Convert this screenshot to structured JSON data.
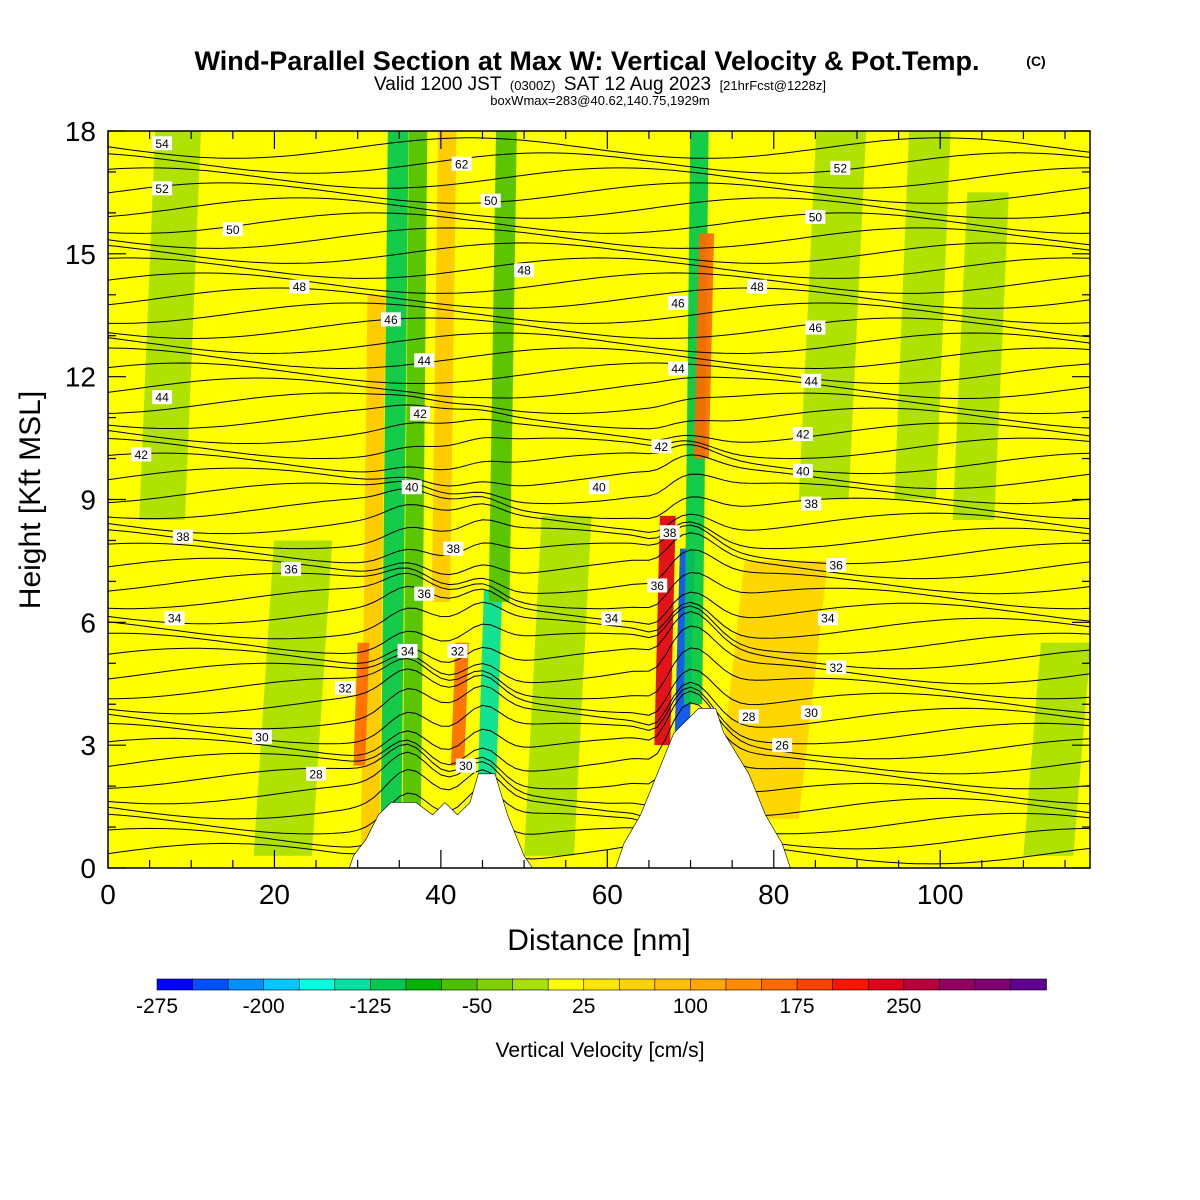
{
  "title": {
    "main": "Wind-Parallel Section at Max W: Vertical Velocity & Pot.Temp.",
    "copyright": "(C)",
    "valid_prefix": "Valid 1200 JST",
    "valid_utc": "(0300Z)",
    "valid_date": "SAT 12 Aug 2023",
    "forecast": "[21hrFcst@1228z]",
    "boxmax": "boxWmax=283@40.62,140.75,1929m"
  },
  "chart_data": {
    "type": "heatmap",
    "xlabel": "Distance [nm]",
    "ylabel": "Height [Kft MSL]",
    "xlim": [
      0,
      118
    ],
    "ylim": [
      0,
      18
    ],
    "x_ticks": [
      "0",
      "20",
      "40",
      "60",
      "80",
      "100"
    ],
    "x_tick_values": [
      0,
      20,
      40,
      60,
      80,
      100
    ],
    "y_ticks": [
      "0",
      "3",
      "6",
      "9",
      "12",
      "15",
      "18"
    ],
    "y_tick_values": [
      0,
      3,
      6,
      9,
      12,
      15,
      18
    ],
    "background_color": "#ffff00",
    "velocity_bands": [
      {
        "x": 6.5,
        "w": 5.5,
        "y0": 8.5,
        "y1": 18,
        "value": -25,
        "color": "#a8e000"
      },
      {
        "x": 21,
        "w": 7,
        "y0": 0.3,
        "y1": 8,
        "value": -25,
        "color": "#a8e000"
      },
      {
        "x": 31.5,
        "w": 2.2,
        "y0": 0.5,
        "y1": 14,
        "value": 75,
        "color": "#ffc800"
      },
      {
        "x": 30.2,
        "w": 1.4,
        "y0": 2.5,
        "y1": 5.5,
        "value": 150,
        "color": "#ff6a00"
      },
      {
        "x": 34,
        "w": 2.5,
        "y0": 0.8,
        "y1": 18,
        "value": -75,
        "color": "#00c850"
      },
      {
        "x": 36.5,
        "w": 2.2,
        "y0": 1.2,
        "y1": 18,
        "value": -50,
        "color": "#4cc000"
      },
      {
        "x": 40,
        "w": 2.2,
        "y0": 6.5,
        "y1": 18,
        "value": 75,
        "color": "#ffc800"
      },
      {
        "x": 42,
        "w": 1.6,
        "y0": 2.5,
        "y1": 5.5,
        "value": 175,
        "color": "#ff6a00"
      },
      {
        "x": 45.5,
        "w": 2.2,
        "y0": 1.8,
        "y1": 6.8,
        "value": -125,
        "color": "#00e0a0"
      },
      {
        "x": 47,
        "w": 2.5,
        "y0": 6.5,
        "y1": 18,
        "value": -50,
        "color": "#4cc000"
      },
      {
        "x": 53,
        "w": 6,
        "y0": 0.3,
        "y1": 8.6,
        "value": -25,
        "color": "#a8e000"
      },
      {
        "x": 66.6,
        "w": 1.9,
        "y0": 3,
        "y1": 8.6,
        "value": 200,
        "color": "#e0001c"
      },
      {
        "x": 69,
        "w": 1.8,
        "y0": 3.3,
        "y1": 7.8,
        "value": -250,
        "color": "#0050ff"
      },
      {
        "x": 70.3,
        "w": 2.2,
        "y0": 4,
        "y1": 18,
        "value": -100,
        "color": "#00c850"
      },
      {
        "x": 71.3,
        "w": 1.8,
        "y0": 10,
        "y1": 15.5,
        "value": 175,
        "color": "#ff6a00"
      },
      {
        "x": 78,
        "w": 10,
        "y0": 1.2,
        "y1": 7.5,
        "value": 50,
        "color": "#ffd200"
      },
      {
        "x": 86,
        "w": 6,
        "y0": 9,
        "y1": 18,
        "value": -25,
        "color": "#a8e000"
      },
      {
        "x": 97,
        "w": 5,
        "y0": 9,
        "y1": 18,
        "value": -25,
        "color": "#a8e000"
      },
      {
        "x": 104,
        "w": 5,
        "y0": 8.5,
        "y1": 16.5,
        "value": -25,
        "color": "#a8e000"
      },
      {
        "x": 113,
        "w": 6,
        "y0": 0.3,
        "y1": 5.5,
        "value": -25,
        "color": "#a8e000"
      }
    ],
    "terrain": [
      [
        29,
        0
      ],
      [
        29.5,
        0.3
      ],
      [
        31,
        0.7
      ],
      [
        32.5,
        1.3
      ],
      [
        34,
        1.6
      ],
      [
        37,
        1.6
      ],
      [
        39,
        1.3
      ],
      [
        40.5,
        1.6
      ],
      [
        42,
        1.3
      ],
      [
        43.5,
        1.6
      ],
      [
        44.5,
        2.3
      ],
      [
        46.5,
        2.3
      ],
      [
        48,
        1.3
      ],
      [
        50,
        0.3
      ],
      [
        51,
        0
      ],
      [
        61,
        0
      ],
      [
        62,
        0.6
      ],
      [
        64,
        1.3
      ],
      [
        66,
        2.3
      ],
      [
        68,
        3.3
      ],
      [
        71,
        3.9
      ],
      [
        73,
        3.9
      ],
      [
        74,
        3.3
      ],
      [
        77,
        2.3
      ],
      [
        79,
        1.3
      ],
      [
        81,
        0.6
      ],
      [
        82,
        0
      ],
      [
        118,
        0
      ]
    ],
    "isentrope_levels": [
      26,
      28,
      30,
      32,
      34,
      36,
      38,
      40,
      42,
      44,
      46,
      48,
      50,
      52,
      54,
      62
    ],
    "contour_labels": [
      {
        "text": "54",
        "x": 6.5,
        "y": 17.7
      },
      {
        "text": "52",
        "x": 6.5,
        "y": 16.6
      },
      {
        "text": "50",
        "x": 15,
        "y": 15.6
      },
      {
        "text": "48",
        "x": 23,
        "y": 14.2
      },
      {
        "text": "46",
        "x": 34,
        "y": 13.4
      },
      {
        "text": "44",
        "x": 38,
        "y": 12.4
      },
      {
        "text": "42",
        "x": 37.5,
        "y": 11.1
      },
      {
        "text": "40",
        "x": 36.5,
        "y": 9.3
      },
      {
        "text": "38",
        "x": 41.5,
        "y": 7.8
      },
      {
        "text": "36",
        "x": 38,
        "y": 6.7
      },
      {
        "text": "34",
        "x": 36,
        "y": 5.3
      },
      {
        "text": "32",
        "x": 42,
        "y": 5.3
      },
      {
        "text": "32",
        "x": 28.5,
        "y": 4.4
      },
      {
        "text": "30",
        "x": 43,
        "y": 2.5
      },
      {
        "text": "30",
        "x": 18.5,
        "y": 3.2
      },
      {
        "text": "28",
        "x": 25,
        "y": 2.3
      },
      {
        "text": "44",
        "x": 6.5,
        "y": 11.5
      },
      {
        "text": "42",
        "x": 4,
        "y": 10.1
      },
      {
        "text": "38",
        "x": 9,
        "y": 8.1
      },
      {
        "text": "36",
        "x": 22,
        "y": 7.3
      },
      {
        "text": "34",
        "x": 8,
        "y": 6.1
      },
      {
        "text": "62",
        "x": 42.5,
        "y": 17.2
      },
      {
        "text": "50",
        "x": 46,
        "y": 16.3
      },
      {
        "text": "48",
        "x": 50,
        "y": 14.6
      },
      {
        "text": "46",
        "x": 68.5,
        "y": 13.8
      },
      {
        "text": "44",
        "x": 68.5,
        "y": 12.2
      },
      {
        "text": "42",
        "x": 66.5,
        "y": 10.3
      },
      {
        "text": "40",
        "x": 59,
        "y": 9.3
      },
      {
        "text": "38",
        "x": 67.5,
        "y": 8.2
      },
      {
        "text": "36",
        "x": 66,
        "y": 6.9
      },
      {
        "text": "34",
        "x": 60.5,
        "y": 6.1
      },
      {
        "text": "48",
        "x": 78,
        "y": 14.2
      },
      {
        "text": "46",
        "x": 85,
        "y": 13.2
      },
      {
        "text": "44",
        "x": 84.5,
        "y": 11.9
      },
      {
        "text": "42",
        "x": 83.5,
        "y": 10.6
      },
      {
        "text": "40",
        "x": 83.5,
        "y": 9.7
      },
      {
        "text": "38",
        "x": 84.5,
        "y": 8.9
      },
      {
        "text": "36",
        "x": 87.5,
        "y": 7.4
      },
      {
        "text": "34",
        "x": 86.5,
        "y": 6.1
      },
      {
        "text": "32",
        "x": 87.5,
        "y": 4.9
      },
      {
        "text": "30",
        "x": 84.5,
        "y": 3.8
      },
      {
        "text": "28",
        "x": 77,
        "y": 3.7
      },
      {
        "text": "26",
        "x": 81,
        "y": 3
      },
      {
        "text": "52",
        "x": 88,
        "y": 17.1
      },
      {
        "text": "50",
        "x": 85,
        "y": 15.9
      }
    ]
  },
  "colorbar": {
    "title": "Vertical Velocity [cm/s]",
    "labels": [
      "-275",
      "-200",
      "-125",
      "-50",
      "25",
      "100",
      "175",
      "250"
    ],
    "colors": [
      "#0000ff",
      "#0050ff",
      "#0090ff",
      "#00c8ff",
      "#00ffe0",
      "#00e0a0",
      "#00c850",
      "#00b400",
      "#4cc000",
      "#80d000",
      "#a8e000",
      "#ffff00",
      "#ffe600",
      "#ffd200",
      "#ffc000",
      "#ffa800",
      "#ff8c00",
      "#ff6a00",
      "#ff4000",
      "#ff1400",
      "#e0001c",
      "#b8003c",
      "#900060",
      "#800070",
      "#600090"
    ]
  }
}
